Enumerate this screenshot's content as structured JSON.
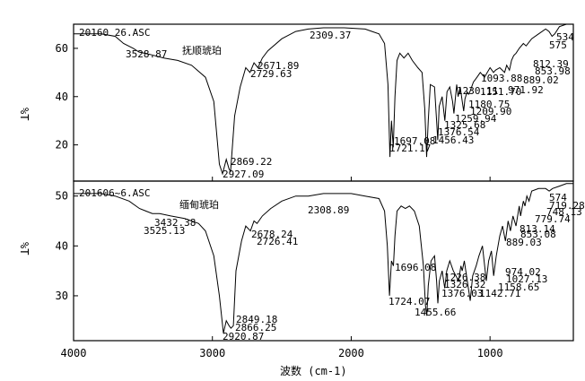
{
  "chart_data": [
    {
      "type": "line",
      "title": "20160 26.ASC",
      "sample_label": "抚顺琥珀",
      "ylabel": "%T",
      "xlabel": "波数 (cm-1)",
      "xlim": [
        4000,
        400
      ],
      "ylim": [
        5,
        70
      ],
      "yticks": [
        20,
        40,
        60
      ],
      "series": [
        {
          "points": [
            [
              4000,
              66
            ],
            [
              3800,
              66
            ],
            [
              3700,
              65
            ],
            [
              3640,
              62
            ],
            [
              3570,
              60
            ],
            [
              3528.87,
              58.5
            ],
            [
              3450,
              57.5
            ],
            [
              3350,
              56
            ],
            [
              3250,
              55
            ],
            [
              3150,
              53
            ],
            [
              3050,
              48
            ],
            [
              2990,
              38
            ],
            [
              2950,
              12
            ],
            [
              2927.09,
              8
            ],
            [
              2900,
              14
            ],
            [
              2880,
              10
            ],
            [
              2869.22,
              9
            ],
            [
              2840,
              32
            ],
            [
              2800,
              44
            ],
            [
              2760,
              52
            ],
            [
              2729.63,
              50
            ],
            [
              2700,
              54
            ],
            [
              2671.89,
              52
            ],
            [
              2640,
              56
            ],
            [
              2600,
              59
            ],
            [
              2500,
              64
            ],
            [
              2400,
              67
            ],
            [
              2309.37,
              68
            ],
            [
              2200,
              68.5
            ],
            [
              2050,
              68.5
            ],
            [
              1900,
              68
            ],
            [
              1850,
              67
            ],
            [
              1800,
              66
            ],
            [
              1760,
              62
            ],
            [
              1735,
              45
            ],
            [
              1721.17,
              15
            ],
            [
              1710,
              30
            ],
            [
              1697.08,
              19
            ],
            [
              1685,
              40
            ],
            [
              1670,
              55
            ],
            [
              1650,
              58
            ],
            [
              1620,
              56
            ],
            [
              1590,
              58
            ],
            [
              1560,
              55
            ],
            [
              1520,
              52
            ],
            [
              1490,
              50
            ],
            [
              1470,
              35
            ],
            [
              1456.43,
              15
            ],
            [
              1445,
              30
            ],
            [
              1430,
              45
            ],
            [
              1400,
              44
            ],
            [
              1385,
              30
            ],
            [
              1376.54,
              22
            ],
            [
              1366,
              36
            ],
            [
              1345,
              40
            ],
            [
              1325.68,
              30
            ],
            [
              1310,
              42
            ],
            [
              1290,
              44
            ],
            [
              1270,
              38
            ],
            [
              1259.94,
              33
            ],
            [
              1240,
              45
            ],
            [
              1230.11,
              40
            ],
            [
              1215,
              44
            ],
            [
              1200,
              38
            ],
            [
              1190,
              34
            ],
            [
              1180.75,
              39
            ],
            [
              1165,
              42
            ],
            [
              1155,
              41
            ],
            [
              1145,
              42
            ],
            [
              1120,
              46
            ],
            [
              1093.88,
              48
            ],
            [
              1070,
              50
            ],
            [
              1040,
              48
            ],
            [
              1020,
              50
            ],
            [
              1000,
              52
            ],
            [
              975,
              50
            ],
            [
              960,
              51
            ],
            [
              930,
              52
            ],
            [
              895,
              50
            ],
            [
              880,
              53
            ],
            [
              860,
              51
            ],
            [
              845,
              55
            ],
            [
              830,
              57
            ],
            [
              812.39,
              58
            ],
            [
              790,
              60
            ],
            [
              760,
              62
            ],
            [
              740,
              61
            ],
            [
              700,
              64
            ],
            [
              650,
              66
            ],
            [
              600,
              68
            ],
            [
              575,
              67
            ],
            [
              553,
              65
            ],
            [
              534,
              66
            ],
            [
              500,
              69
            ],
            [
              450,
              70
            ],
            [
              400,
              70
            ]
          ]
        }
      ],
      "peak_labels": [
        "3528.87",
        "2671.89",
        "2729.63",
        "2309.37",
        "2869.22",
        "2927.09",
        "1697.08",
        "1721.17",
        "1456.43",
        "1376.54",
        "1325.68",
        "1259.94",
        "1209.90",
        "1230.11",
        "1180.75",
        "1151.70",
        "1093.88",
        "971.92",
        "889.02",
        "853.98",
        "812.39",
        "575",
        "534"
      ]
    },
    {
      "type": "line",
      "title": "201606~6.ASC",
      "sample_label": "缅甸琥珀",
      "ylabel": "%T",
      "xlabel": "波数 (cm-1)",
      "xlim": [
        4000,
        400
      ],
      "ylim": [
        21,
        53
      ],
      "yticks": [
        30,
        40,
        50
      ],
      "series": [
        {
          "points": [
            [
              4000,
              50.5
            ],
            [
              3800,
              50.5
            ],
            [
              3700,
              50
            ],
            [
              3600,
              49
            ],
            [
              3525.13,
              47.5
            ],
            [
              3480,
              47
            ],
            [
              3432.38,
              46.5
            ],
            [
              3380,
              46.5
            ],
            [
              3300,
              46
            ],
            [
              3200,
              45.5
            ],
            [
              3100,
              44.5
            ],
            [
              3050,
              43
            ],
            [
              2990,
              38
            ],
            [
              2950,
              30
            ],
            [
              2920.87,
              22.5
            ],
            [
              2900,
              25
            ],
            [
              2880,
              24
            ],
            [
              2866.25,
              23.5
            ],
            [
              2849.18,
              24
            ],
            [
              2830,
              35
            ],
            [
              2790,
              41
            ],
            [
              2760,
              44
            ],
            [
              2726.41,
              43
            ],
            [
              2700,
              45
            ],
            [
              2678.24,
              44.5
            ],
            [
              2640,
              46
            ],
            [
              2580,
              47.5
            ],
            [
              2500,
              49
            ],
            [
              2400,
              50
            ],
            [
              2308.89,
              50
            ],
            [
              2200,
              50.5
            ],
            [
              2000,
              50.5
            ],
            [
              1900,
              50
            ],
            [
              1800,
              49.5
            ],
            [
              1760,
              47
            ],
            [
              1740,
              40
            ],
            [
              1724.07,
              30
            ],
            [
              1710,
              37
            ],
            [
              1696.08,
              36
            ],
            [
              1685,
              42
            ],
            [
              1670,
              47
            ],
            [
              1640,
              48
            ],
            [
              1610,
              47.5
            ],
            [
              1580,
              48
            ],
            [
              1545,
              47
            ],
            [
              1510,
              44
            ],
            [
              1480,
              36
            ],
            [
              1465,
              28
            ],
            [
              1455.66,
              26
            ],
            [
              1445,
              32
            ],
            [
              1425,
              37
            ],
            [
              1400,
              38
            ],
            [
              1385,
              33
            ],
            [
              1376.03,
              28.5
            ],
            [
              1365,
              33
            ],
            [
              1345,
              35
            ],
            [
              1326.32,
              31.5
            ],
            [
              1312,
              35
            ],
            [
              1290,
              37
            ],
            [
              1265,
              35
            ],
            [
              1226.38,
              33
            ],
            [
              1210,
              36
            ],
            [
              1200,
              35
            ],
            [
              1185,
              37
            ],
            [
              1158.65,
              32
            ],
            [
              1142.71,
              29
            ],
            [
              1125,
              34
            ],
            [
              1100,
              36
            ],
            [
              1080,
              38
            ],
            [
              1055,
              40
            ],
            [
              1027.13,
              33
            ],
            [
              1010,
              37
            ],
            [
              990,
              39
            ],
            [
              974.02,
              34
            ],
            [
              955,
              38
            ],
            [
              930,
              42
            ],
            [
              910,
              44
            ],
            [
              889.03,
              41
            ],
            [
              870,
              45
            ],
            [
              853.08,
              43
            ],
            [
              835,
              46
            ],
            [
              813.14,
              44
            ],
            [
              790,
              48
            ],
            [
              779.74,
              46
            ],
            [
              760,
              49
            ],
            [
              748.13,
              48
            ],
            [
              735,
              50
            ],
            [
              719.28,
              49
            ],
            [
              700,
              51
            ],
            [
              650,
              51.5
            ],
            [
              600,
              51.5
            ],
            [
              574,
              51
            ],
            [
              550,
              51.5
            ],
            [
              500,
              52
            ],
            [
              450,
              52.5
            ],
            [
              400,
              52.5
            ]
          ]
        }
      ],
      "peak_labels": [
        "3525.13",
        "3432.38",
        "2678.24",
        "2726.41",
        "2308.89",
        "2849.18",
        "2866.25",
        "2920.87",
        "1696.08",
        "1724.07",
        "1455.66",
        "1376.03",
        "1326.32",
        "1226.38",
        "1158.65",
        "1142.71",
        "1027.13",
        "974.02",
        "889.03",
        "853.08",
        "813.14",
        "779.74",
        "748.13",
        "719.28",
        "574"
      ]
    }
  ],
  "x_axis": {
    "ticks": [
      "4000",
      "3000",
      "2000",
      "1000"
    ],
    "title": "波数 (cm-1)"
  }
}
